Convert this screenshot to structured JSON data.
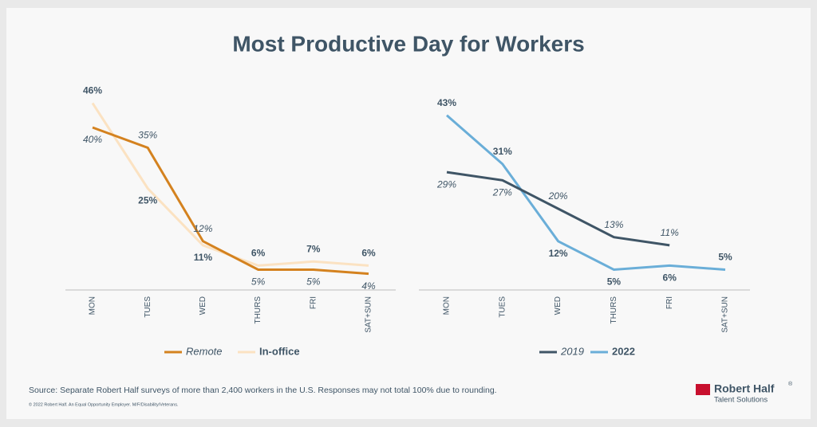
{
  "page": {
    "title": "Most Productive Day for Workers",
    "source": "Source: Separate Robert Half surveys of more than 2,400 workers in the U.S. Responses may not total 100% due to rounding.",
    "copyright": "© 2022 Robert Half. An Equal Opportunity Employer. M/F/Disability/Veterans.",
    "logo_name": "Robert Half",
    "logo_mark": "®",
    "logo_sub": "Talent Solutions"
  },
  "chart_data": [
    {
      "type": "line",
      "categories": [
        "MON",
        "TUES",
        "WED",
        "THURS",
        "FRI",
        "SAT+SUN"
      ],
      "series": [
        {
          "name": "Remote",
          "color": "#d4821f",
          "values": [
            40,
            35,
            12,
            5,
            5,
            4
          ],
          "value_labels": [
            "40%",
            "35%",
            "12%",
            "5%",
            "5%",
            "4%"
          ]
        },
        {
          "name": "In-office",
          "color": "#fbe2c2",
          "values": [
            46,
            25,
            11,
            6,
            7,
            6
          ],
          "value_labels": [
            "46%",
            "25%",
            "11%",
            "6%",
            "7%",
            "6%"
          ]
        }
      ]
    },
    {
      "type": "line",
      "categories": [
        "MON",
        "TUES",
        "WED",
        "THURS",
        "FRI",
        "SAT+SUN"
      ],
      "series": [
        {
          "name": "2019",
          "color": "#3f5566",
          "values": [
            29,
            27,
            20,
            13,
            11,
            null
          ],
          "value_labels": [
            "29%",
            "27%",
            "20%",
            "13%",
            "11%",
            null
          ]
        },
        {
          "name": "2022",
          "color": "#6aaed8",
          "values": [
            43,
            31,
            12,
            5,
            6,
            5
          ],
          "value_labels": [
            "43%",
            "31%",
            "12%",
            "5%",
            "6%",
            "5%"
          ]
        }
      ]
    }
  ]
}
